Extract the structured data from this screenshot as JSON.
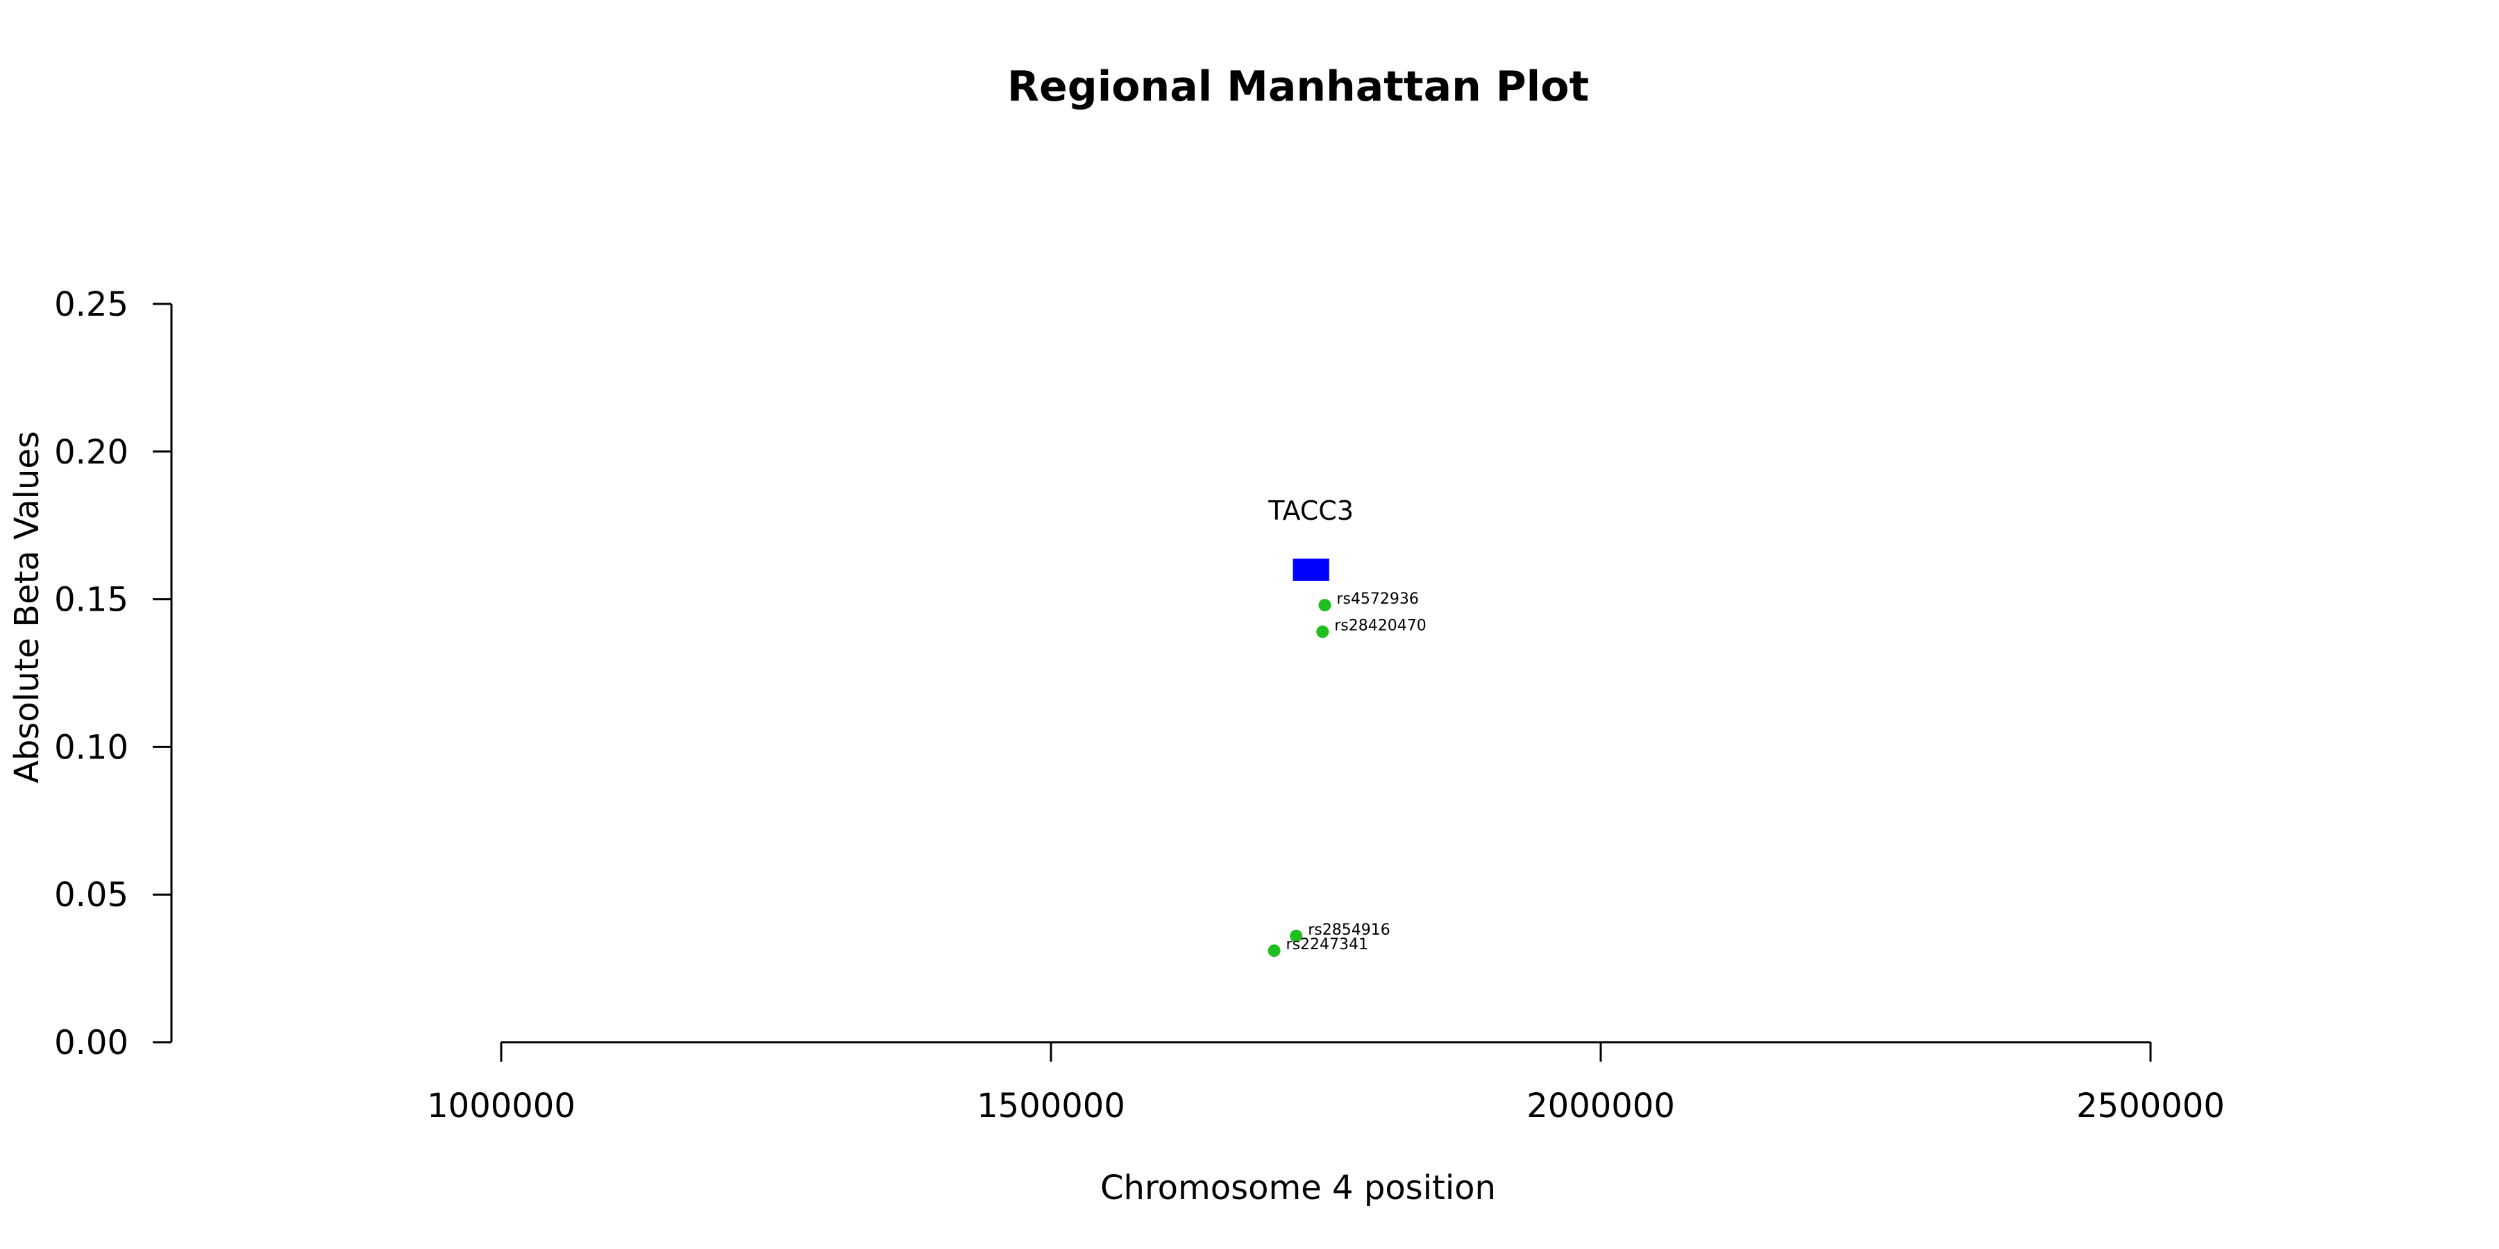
{
  "chart_data": {
    "type": "scatter",
    "title": "Regional Manhattan Plot",
    "xlabel": "Chromosome 4 position",
    "ylabel": "Absolute Beta Values",
    "xlim": [
      1000000,
      2500000
    ],
    "ylim": [
      0,
      0.25
    ],
    "x_ticks": [
      "1000000",
      "1500000",
      "2000000",
      "2500000"
    ],
    "y_ticks": [
      "0.00",
      "0.05",
      "0.10",
      "0.15",
      "0.20",
      "0.25"
    ],
    "point_color": "#1fbf1f",
    "gene_color": "#0000ff",
    "genes": [
      {
        "name": "TACC3",
        "start": 1720000,
        "end": 1753000,
        "y": 0.16
      }
    ],
    "points": [
      {
        "label": "rs4572936",
        "x": 1749000,
        "y": 0.148
      },
      {
        "label": "rs28420470",
        "x": 1747000,
        "y": 0.139
      },
      {
        "label": "rs2854916",
        "x": 1723000,
        "y": 0.036
      },
      {
        "label": "rs2247341",
        "x": 1703000,
        "y": 0.031
      }
    ],
    "grid": false,
    "legend": "none"
  }
}
